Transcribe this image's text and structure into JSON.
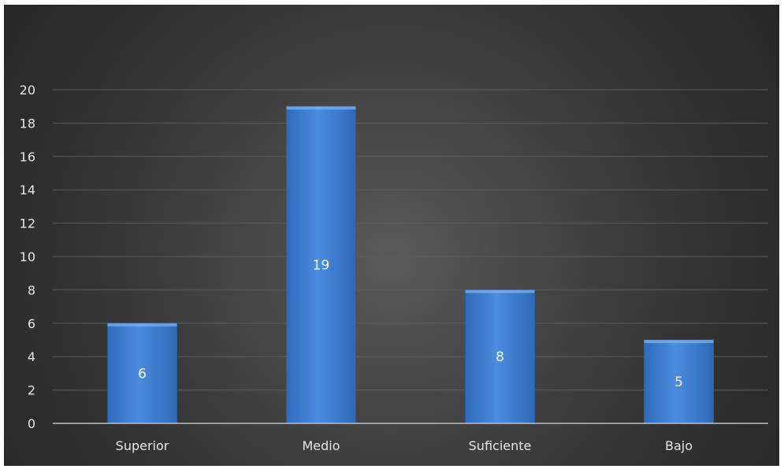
{
  "chart_data": {
    "type": "bar",
    "categories": [
      "Superior",
      "Medio",
      "Suficiente",
      "Bajo"
    ],
    "values": [
      6,
      19,
      8,
      5
    ],
    "data_labels": [
      "6",
      "19",
      "8",
      "5"
    ],
    "title": "",
    "xlabel": "",
    "ylabel": "",
    "ylim": [
      0,
      20
    ],
    "yticks": [
      "0",
      "2",
      "4",
      "6",
      "8",
      "10",
      "12",
      "14",
      "16",
      "18",
      "20"
    ],
    "grid": true,
    "legend": "none",
    "colors": {
      "bar": "#3f7fd2",
      "bar_edge": "#2a5d9f",
      "background": "#3a3a3a",
      "text": "#e6e6e6"
    }
  }
}
